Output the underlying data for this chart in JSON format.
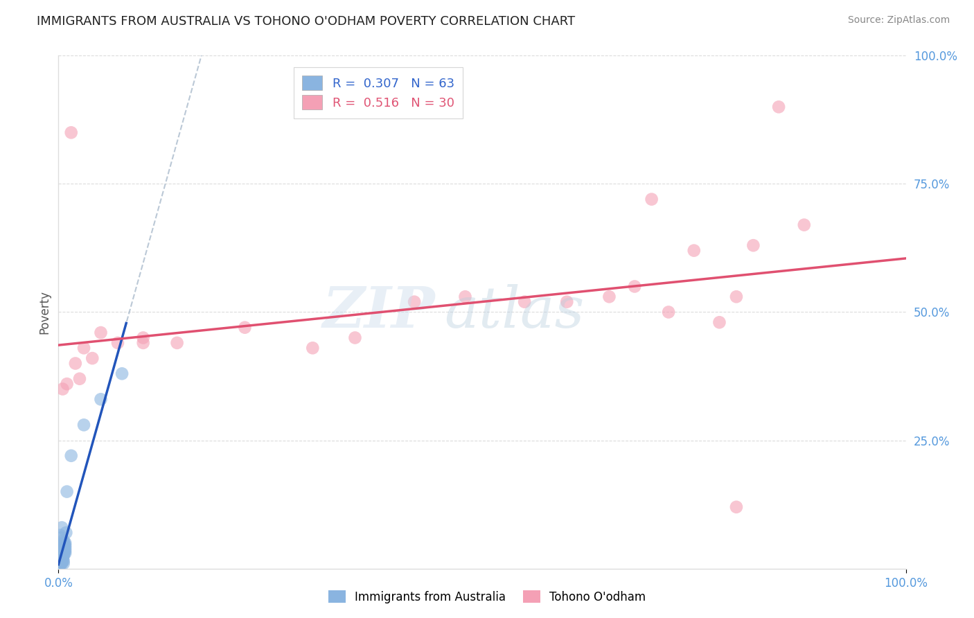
{
  "title": "IMMIGRANTS FROM AUSTRALIA VS TOHONO O'ODHAM POVERTY CORRELATION CHART",
  "source": "Source: ZipAtlas.com",
  "ylabel": "Poverty",
  "r_blue": 0.307,
  "n_blue": 63,
  "r_pink": 0.516,
  "n_pink": 30,
  "blue_color": "#8ab4e0",
  "pink_color": "#f4a0b5",
  "blue_line_color": "#2255bb",
  "pink_line_color": "#e05070",
  "dashed_line_color": "#aabbcc",
  "blue_points": [
    [
      0.3,
      1.5
    ],
    [
      0.5,
      2.0
    ],
    [
      0.2,
      1.0
    ],
    [
      0.8,
      3.5
    ],
    [
      0.4,
      2.5
    ],
    [
      0.1,
      0.5
    ],
    [
      0.6,
      3.0
    ],
    [
      0.3,
      2.0
    ],
    [
      0.7,
      4.0
    ],
    [
      0.2,
      1.5
    ],
    [
      0.5,
      3.5
    ],
    [
      0.4,
      2.0
    ],
    [
      0.3,
      1.0
    ],
    [
      0.6,
      2.5
    ],
    [
      0.8,
      4.5
    ],
    [
      0.2,
      2.5
    ],
    [
      0.5,
      1.5
    ],
    [
      0.1,
      1.0
    ],
    [
      0.4,
      3.0
    ],
    [
      0.7,
      5.0
    ],
    [
      0.3,
      2.0
    ],
    [
      0.6,
      3.5
    ],
    [
      0.2,
      1.5
    ],
    [
      0.4,
      2.0
    ],
    [
      0.5,
      4.0
    ],
    [
      0.1,
      1.5
    ],
    [
      0.3,
      2.5
    ],
    [
      0.6,
      1.0
    ],
    [
      0.8,
      3.0
    ],
    [
      0.4,
      1.5
    ],
    [
      0.2,
      3.0
    ],
    [
      0.5,
      2.5
    ],
    [
      0.7,
      3.5
    ],
    [
      0.3,
      4.0
    ],
    [
      0.6,
      5.5
    ],
    [
      0.2,
      2.0
    ],
    [
      0.4,
      1.0
    ],
    [
      0.8,
      5.0
    ],
    [
      0.3,
      3.5
    ],
    [
      0.5,
      2.0
    ],
    [
      0.1,
      1.0
    ],
    [
      0.4,
      4.5
    ],
    [
      0.7,
      3.0
    ],
    [
      0.5,
      2.5
    ],
    [
      0.2,
      1.0
    ],
    [
      0.6,
      1.5
    ],
    [
      0.3,
      6.0
    ],
    [
      0.8,
      4.0
    ],
    [
      0.5,
      3.0
    ],
    [
      0.9,
      7.0
    ],
    [
      0.1,
      2.5
    ],
    [
      0.4,
      3.5
    ],
    [
      0.7,
      4.5
    ],
    [
      0.3,
      1.0
    ],
    [
      0.6,
      3.0
    ],
    [
      0.2,
      6.5
    ],
    [
      1.5,
      22.0
    ],
    [
      0.5,
      5.0
    ],
    [
      3.0,
      28.0
    ],
    [
      0.4,
      8.0
    ],
    [
      1.0,
      15.0
    ],
    [
      5.0,
      33.0
    ],
    [
      7.5,
      38.0
    ]
  ],
  "pink_points": [
    [
      0.5,
      35.0
    ],
    [
      1.5,
      85.0
    ],
    [
      2.0,
      40.0
    ],
    [
      1.0,
      36.0
    ],
    [
      3.0,
      43.0
    ],
    [
      4.0,
      41.0
    ],
    [
      5.0,
      46.0
    ],
    [
      2.5,
      37.0
    ],
    [
      7.0,
      44.0
    ],
    [
      10.0,
      45.0
    ],
    [
      14.0,
      44.0
    ],
    [
      22.0,
      47.0
    ],
    [
      30.0,
      43.0
    ],
    [
      35.0,
      45.0
    ],
    [
      42.0,
      52.0
    ],
    [
      48.0,
      53.0
    ],
    [
      55.0,
      52.0
    ],
    [
      60.0,
      52.0
    ],
    [
      65.0,
      53.0
    ],
    [
      68.0,
      55.0
    ],
    [
      70.0,
      72.0
    ],
    [
      72.0,
      50.0
    ],
    [
      75.0,
      62.0
    ],
    [
      78.0,
      48.0
    ],
    [
      80.0,
      53.0
    ],
    [
      82.0,
      63.0
    ],
    [
      85.0,
      90.0
    ],
    [
      88.0,
      67.0
    ],
    [
      80.0,
      12.0
    ],
    [
      10.0,
      44.0
    ]
  ],
  "background_color": "#ffffff",
  "grid_color": "#cccccc",
  "title_color": "#222222",
  "legend_text_color_blue": "#3366cc",
  "legend_text_color_pink": "#e05575",
  "tick_color": "#5599dd"
}
